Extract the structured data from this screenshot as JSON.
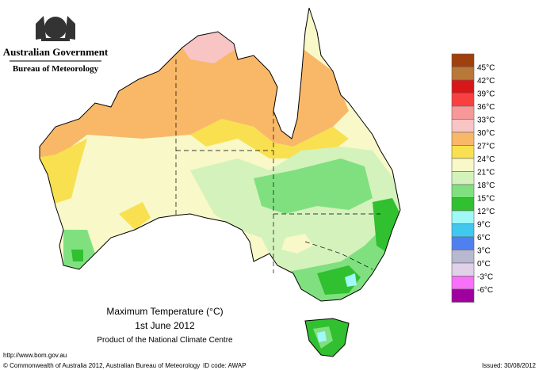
{
  "header": {
    "government": "Australian Government",
    "bureau": "Bureau of Meteorology"
  },
  "legend": {
    "labels": [
      "45°C",
      "42°C",
      "39°C",
      "36°C",
      "33°C",
      "30°C",
      "27°C",
      "24°C",
      "21°C",
      "18°C",
      "15°C",
      "12°C",
      "9°C",
      "6°C",
      "3°C",
      "0°C",
      "-3°C",
      "-6°C"
    ],
    "colors": [
      "#a0400c",
      "#b87838",
      "#d81818",
      "#f84040",
      "#f89898",
      "#f8c4c4",
      "#f8b868",
      "#f8e050",
      "#f8f8c8",
      "#d4f2bc",
      "#80e080",
      "#30c030",
      "#a0f8f8",
      "#40c8f0",
      "#5080f0",
      "#b8b8d0",
      "#e0d0e8",
      "#f870f8",
      "#a000a0"
    ]
  },
  "title": "Maximum Temperature (°C)",
  "date": "1st June 2012",
  "product": "Product of the National Climate Centre",
  "footer": {
    "url": "http://www.bom.gov.au",
    "copyright": "© Commonwealth of Australia 2012, Australian Bureau of Meteorology",
    "id": "ID code: AWAP",
    "issued": "Issued: 30/08/2012"
  }
}
